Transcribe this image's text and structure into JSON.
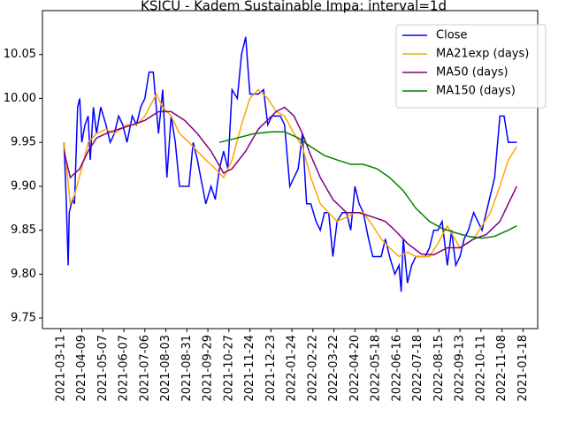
{
  "chart_data": {
    "type": "line",
    "title": "KSICU - Kadem Sustainable Impa: interval=1d",
    "xlim": [
      -17.5,
      454
    ],
    "ylim": [
      9.738,
      10.1
    ],
    "yticks": [
      9.75,
      {
        "value": 9.8,
        "label": "9.80"
      },
      9.85,
      {
        "value": 9.9,
        "label": "9.90"
      },
      9.95,
      {
        "value": 10.0,
        "label": "10.00"
      },
      10.05
    ],
    "xticks": [
      {
        "value": 0,
        "label": "2021-03-11"
      },
      {
        "value": 20,
        "label": "2021-04-09"
      },
      {
        "value": 40,
        "label": "2021-05-07"
      },
      {
        "value": 60,
        "label": "2021-06-07"
      },
      {
        "value": 80,
        "label": "2021-07-06"
      },
      {
        "value": 100,
        "label": "2021-08-03"
      },
      {
        "value": 120,
        "label": "2021-08-31"
      },
      {
        "value": 140,
        "label": "2021-09-29"
      },
      {
        "value": 160,
        "label": "2021-10-27"
      },
      {
        "value": 180,
        "label": "2021-11-24"
      },
      {
        "value": 200,
        "label": "2021-12-23"
      },
      {
        "value": 220,
        "label": "2022-01-24"
      },
      {
        "value": 240,
        "label": "2022-02-22"
      },
      {
        "value": 260,
        "label": "2022-03-22"
      },
      {
        "value": 280,
        "label": "2022-04-20"
      },
      {
        "value": 300,
        "label": "2022-05-18"
      },
      {
        "value": 320,
        "label": "2022-06-16"
      },
      {
        "value": 340,
        "label": "2022-07-18"
      },
      {
        "value": 360,
        "label": "2022-08-15"
      },
      {
        "value": 380,
        "label": "2022-09-13"
      },
      {
        "value": 400,
        "label": "2022-10-11"
      },
      {
        "value": 420,
        "label": "2022-11-08"
      },
      {
        "value": 440,
        "label": "2021-01-18"
      }
    ],
    "legend": "upper right",
    "series": [
      {
        "name": "Close",
        "color": "#0000ff",
        "x": [
          3,
          5,
          7,
          8,
          11,
          13,
          16,
          18,
          20,
          23,
          26,
          28,
          31,
          34,
          38,
          43,
          47,
          51,
          55,
          59,
          63,
          68,
          72,
          76,
          80,
          84,
          88,
          93,
          97,
          101,
          105,
          109,
          113,
          118,
          122,
          126,
          130,
          134,
          138,
          143,
          147,
          151,
          155,
          159,
          163,
          168,
          172,
          176,
          180,
          184,
          188,
          193,
          197,
          201,
          205,
          209,
          213,
          218,
          222,
          226,
          230,
          234,
          238,
          243,
          247,
          251,
          255,
          259,
          263,
          268,
          272,
          276,
          280,
          284,
          288,
          293,
          297,
          301,
          305,
          309,
          313,
          318,
          322,
          324,
          326,
          330,
          334,
          338,
          343,
          347,
          351,
          355,
          359,
          363,
          368,
          372,
          376,
          380,
          384,
          388,
          393,
          397,
          401,
          405,
          409,
          413,
          418,
          422,
          426,
          430,
          434
        ],
        "values": [
          9.95,
          9.89,
          9.81,
          9.87,
          9.885,
          9.88,
          9.99,
          10.0,
          9.95,
          9.97,
          9.98,
          9.93,
          9.99,
          9.96,
          9.99,
          9.97,
          9.95,
          9.96,
          9.98,
          9.97,
          9.95,
          9.98,
          9.97,
          9.99,
          10.0,
          10.03,
          10.03,
          9.96,
          10.01,
          9.91,
          9.98,
          9.95,
          9.9,
          9.9,
          9.9,
          9.95,
          9.93,
          9.905,
          9.88,
          9.9,
          9.885,
          9.92,
          9.94,
          9.92,
          10.01,
          10.0,
          10.05,
          10.07,
          10.005,
          10.005,
          10.005,
          10.01,
          9.97,
          9.98,
          9.98,
          9.98,
          9.97,
          9.9,
          9.91,
          9.92,
          9.96,
          9.88,
          9.88,
          9.86,
          9.85,
          9.87,
          9.87,
          9.82,
          9.86,
          9.87,
          9.87,
          9.85,
          9.9,
          9.88,
          9.87,
          9.84,
          9.82,
          9.82,
          9.82,
          9.84,
          9.82,
          9.8,
          9.81,
          9.78,
          9.84,
          9.79,
          9.81,
          9.82,
          9.82,
          9.82,
          9.83,
          9.85,
          9.85,
          9.86,
          9.81,
          9.85,
          9.81,
          9.82,
          9.84,
          9.85,
          9.87,
          9.86,
          9.85,
          9.87,
          9.89,
          9.91,
          9.98,
          9.98,
          9.95,
          9.95,
          9.95
        ]
      },
      {
        "name": "MA21exp (days)",
        "color": "#ffa500",
        "x": [
          3,
          9,
          13,
          22,
          26,
          34,
          43,
          51,
          63,
          72,
          80,
          91,
          97,
          105,
          113,
          122,
          130,
          138,
          147,
          155,
          163,
          172,
          180,
          188,
          197,
          205,
          213,
          222,
          230,
          238,
          247,
          255,
          263,
          272,
          280,
          288,
          297,
          305,
          313,
          322,
          330,
          338,
          351,
          359,
          368,
          380,
          393,
          401,
          409,
          418,
          426,
          434
        ],
        "values": [
          9.95,
          9.88,
          9.89,
          9.93,
          9.95,
          9.96,
          9.965,
          9.96,
          9.97,
          9.97,
          9.98,
          10.005,
          9.99,
          9.98,
          9.96,
          9.95,
          9.94,
          9.93,
          9.92,
          9.91,
          9.93,
          9.97,
          10.0,
          10.01,
          10.0,
          9.985,
          9.98,
          9.96,
          9.945,
          9.91,
          9.88,
          9.87,
          9.86,
          9.865,
          9.87,
          9.87,
          9.855,
          9.84,
          9.83,
          9.82,
          9.825,
          9.82,
          9.82,
          9.835,
          9.855,
          9.83,
          9.84,
          9.855,
          9.87,
          9.9,
          9.93,
          9.945
        ]
      },
      {
        "name": "MA50 (days)",
        "color": "#800080",
        "x": [
          3,
          9,
          18,
          26,
          34,
          43,
          55,
          68,
          80,
          93,
          105,
          118,
          130,
          143,
          155,
          163,
          176,
          188,
          205,
          213,
          222,
          230,
          238,
          247,
          259,
          272,
          284,
          297,
          309,
          318,
          330,
          343,
          355,
          368,
          380,
          393,
          405,
          418,
          426,
          434
        ],
        "values": [
          9.94,
          9.91,
          9.92,
          9.94,
          9.955,
          9.96,
          9.965,
          9.97,
          9.975,
          9.985,
          9.985,
          9.975,
          9.96,
          9.94,
          9.915,
          9.92,
          9.94,
          9.965,
          9.985,
          9.99,
          9.98,
          9.96,
          9.935,
          9.91,
          9.885,
          9.87,
          9.87,
          9.865,
          9.86,
          9.85,
          9.835,
          9.823,
          9.822,
          9.83,
          9.83,
          9.84,
          9.845,
          9.86,
          9.88,
          9.9
        ]
      },
      {
        "name": "MA150 (days)",
        "color": "#008000",
        "x": [
          151,
          168,
          184,
          201,
          213,
          226,
          238,
          251,
          263,
          276,
          288,
          301,
          313,
          326,
          338,
          351,
          363,
          376,
          388,
          401,
          413,
          426,
          434
        ],
        "values": [
          9.95,
          9.955,
          9.96,
          9.962,
          9.962,
          9.955,
          9.945,
          9.935,
          9.93,
          9.925,
          9.925,
          9.92,
          9.91,
          9.895,
          9.875,
          9.86,
          9.852,
          9.847,
          9.843,
          9.841,
          9.843,
          9.85,
          9.855
        ]
      }
    ]
  }
}
